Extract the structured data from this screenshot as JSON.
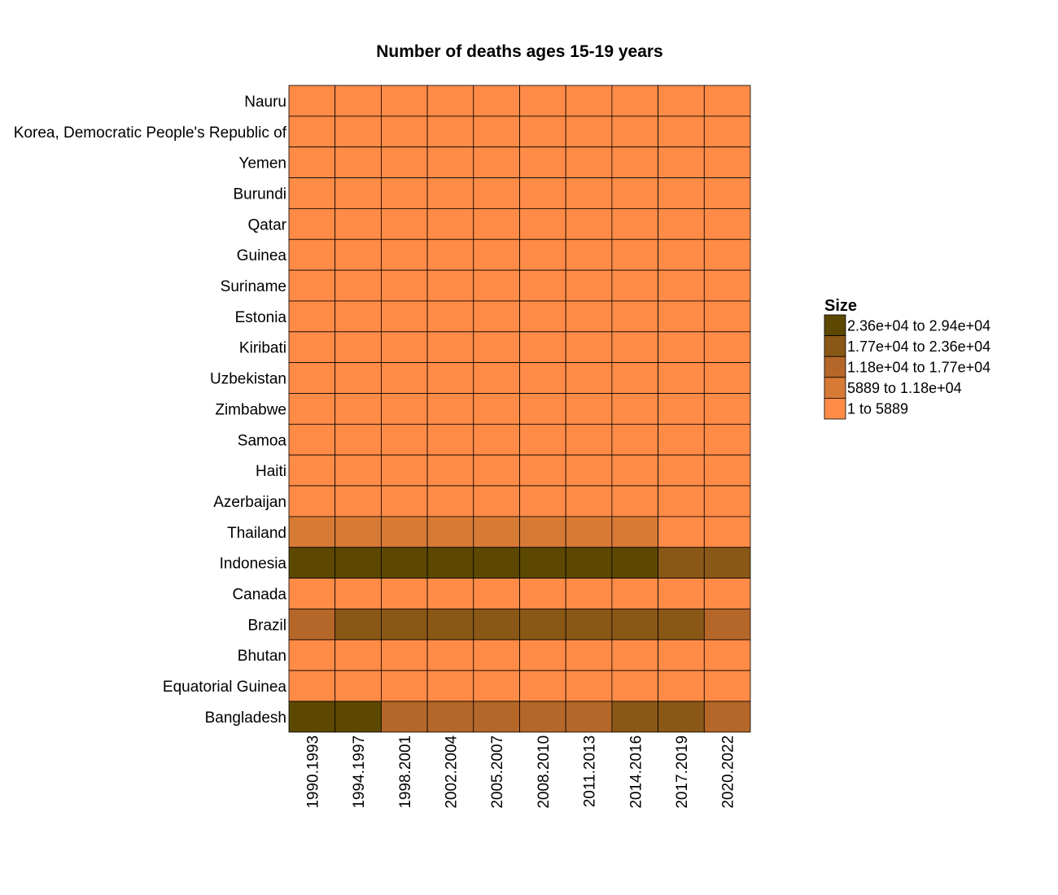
{
  "chart_data": {
    "type": "heatmap",
    "title": "Number of deaths ages 15-19 years",
    "xlabel": "",
    "ylabel": "",
    "columns": [
      "1990.1993",
      "1994.1997",
      "1998.2001",
      "2002.2004",
      "2005.2007",
      "2008.2010",
      "2011.2013",
      "2014.2016",
      "2017.2019",
      "2020.2022"
    ],
    "rows": [
      "Nauru",
      "Korea, Democratic People's Republic of",
      "Yemen",
      "Burundi",
      "Qatar",
      "Guinea",
      "Suriname",
      "Estonia",
      "Kiribati",
      "Uzbekistan",
      "Zimbabwe",
      "Samoa",
      "Haiti",
      "Azerbaijan",
      "Thailand",
      "Indonesia",
      "Canada",
      "Brazil",
      "Bhutan",
      "Equatorial Guinea",
      "Bangladesh"
    ],
    "bins": [
      {
        "label": "2.36e+04 to 2.94e+04",
        "color": "#5c4800"
      },
      {
        "label": "1.77e+04 to 2.36e+04",
        "color": "#8a5816"
      },
      {
        "label": "1.18e+04 to 1.77e+04",
        "color": "#b5672a"
      },
      {
        "label": "5889 to 1.18e+04",
        "color": "#d77a36"
      },
      {
        "label": "1 to 5889",
        "color": "#ff8b47"
      }
    ],
    "cell_bins": [
      [
        4,
        4,
        4,
        4,
        4,
        4,
        4,
        4,
        4,
        4
      ],
      [
        4,
        4,
        4,
        4,
        4,
        4,
        4,
        4,
        4,
        4
      ],
      [
        4,
        4,
        4,
        4,
        4,
        4,
        4,
        4,
        4,
        4
      ],
      [
        4,
        4,
        4,
        4,
        4,
        4,
        4,
        4,
        4,
        4
      ],
      [
        4,
        4,
        4,
        4,
        4,
        4,
        4,
        4,
        4,
        4
      ],
      [
        4,
        4,
        4,
        4,
        4,
        4,
        4,
        4,
        4,
        4
      ],
      [
        4,
        4,
        4,
        4,
        4,
        4,
        4,
        4,
        4,
        4
      ],
      [
        4,
        4,
        4,
        4,
        4,
        4,
        4,
        4,
        4,
        4
      ],
      [
        4,
        4,
        4,
        4,
        4,
        4,
        4,
        4,
        4,
        4
      ],
      [
        4,
        4,
        4,
        4,
        4,
        4,
        4,
        4,
        4,
        4
      ],
      [
        4,
        4,
        4,
        4,
        4,
        4,
        4,
        4,
        4,
        4
      ],
      [
        4,
        4,
        4,
        4,
        4,
        4,
        4,
        4,
        4,
        4
      ],
      [
        4,
        4,
        4,
        4,
        4,
        4,
        4,
        4,
        4,
        4
      ],
      [
        4,
        4,
        4,
        4,
        4,
        4,
        4,
        4,
        4,
        4
      ],
      [
        3,
        3,
        3,
        3,
        3,
        3,
        3,
        3,
        4,
        4
      ],
      [
        0,
        0,
        0,
        0,
        0,
        0,
        0,
        0,
        1,
        1
      ],
      [
        4,
        4,
        4,
        4,
        4,
        4,
        4,
        4,
        4,
        4
      ],
      [
        2,
        1,
        1,
        1,
        1,
        1,
        1,
        1,
        1,
        2
      ],
      [
        4,
        4,
        4,
        4,
        4,
        4,
        4,
        4,
        4,
        4
      ],
      [
        4,
        4,
        4,
        4,
        4,
        4,
        4,
        4,
        4,
        4
      ],
      [
        0,
        0,
        2,
        2,
        2,
        2,
        2,
        1,
        1,
        2
      ]
    ],
    "legend": {
      "title": "Size",
      "position": "right"
    },
    "grid": false
  }
}
